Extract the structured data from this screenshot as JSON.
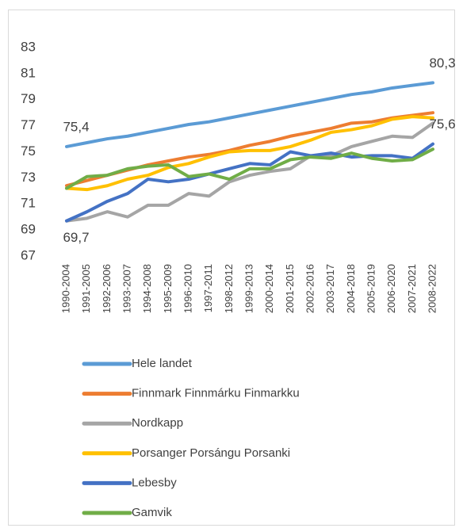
{
  "chart_data": {
    "type": "line",
    "categories": [
      "1990-2004",
      "1991-2005",
      "1992-2006",
      "1993-2007",
      "1994-2008",
      "1995-2009",
      "1996-2010",
      "1997-2011",
      "1998-2012",
      "1999-2013",
      "2000-2014",
      "2001-2015",
      "2002-2016",
      "2003-2017",
      "2004-2018",
      "2005-2019",
      "2006-2020",
      "2007-2021",
      "2008-2022"
    ],
    "ylim": [
      67,
      83
    ],
    "yticks": [
      67,
      69,
      71,
      73,
      75,
      77,
      79,
      81,
      83
    ],
    "grid": false,
    "legend": "bottom",
    "series": [
      {
        "name": "Hele landet",
        "color": "#5b9bd5",
        "values": [
          75.4,
          75.7,
          76.0,
          76.2,
          76.5,
          76.8,
          77.1,
          77.3,
          77.6,
          77.9,
          78.2,
          78.5,
          78.8,
          79.1,
          79.4,
          79.6,
          79.9,
          80.1,
          80.3
        ],
        "value_labels": [
          "75,4",
          null,
          null,
          null,
          null,
          null,
          null,
          null,
          null,
          null,
          null,
          null,
          null,
          null,
          null,
          null,
          null,
          null,
          "80,3"
        ]
      },
      {
        "name": "Finnmark Finnmárku Finmarkku",
        "color": "#ed7d31",
        "values": [
          72.4,
          72.8,
          73.2,
          73.6,
          74.0,
          74.3,
          74.6,
          74.8,
          75.1,
          75.5,
          75.8,
          76.2,
          76.5,
          76.8,
          77.2,
          77.3,
          77.6,
          77.8,
          78.0
        ]
      },
      {
        "name": "Nordkapp",
        "color": "#a5a5a5",
        "values": [
          69.7,
          69.9,
          70.4,
          70.0,
          70.9,
          70.9,
          71.8,
          71.6,
          72.7,
          73.2,
          73.5,
          73.7,
          74.7,
          74.7,
          75.4,
          75.8,
          76.2,
          76.1,
          77.2
        ]
      },
      {
        "name": "Porsanger Porsángu Porsanki",
        "color": "#ffc000",
        "values": [
          72.2,
          72.1,
          72.4,
          72.9,
          73.2,
          73.8,
          74.1,
          74.6,
          75.0,
          75.1,
          75.1,
          75.4,
          75.9,
          76.5,
          76.7,
          77.0,
          77.5,
          77.7,
          77.6
        ]
      },
      {
        "name": "Lebesby",
        "color": "#4472c4",
        "values": [
          69.7,
          70.4,
          71.2,
          71.8,
          72.9,
          72.7,
          72.9,
          73.3,
          73.7,
          74.1,
          74.0,
          75.0,
          74.7,
          74.9,
          74.6,
          74.7,
          74.7,
          74.5,
          75.6
        ],
        "value_labels": [
          "69,7",
          null,
          null,
          null,
          null,
          null,
          null,
          null,
          null,
          null,
          null,
          null,
          null,
          null,
          null,
          null,
          null,
          null,
          "75,6"
        ]
      },
      {
        "name": "Gamvik",
        "color": "#70ad47",
        "values": [
          72.2,
          73.1,
          73.2,
          73.7,
          73.9,
          74.0,
          73.1,
          73.3,
          72.9,
          73.7,
          73.7,
          74.4,
          74.6,
          74.5,
          74.9,
          74.5,
          74.3,
          74.4,
          75.2
        ]
      }
    ]
  }
}
